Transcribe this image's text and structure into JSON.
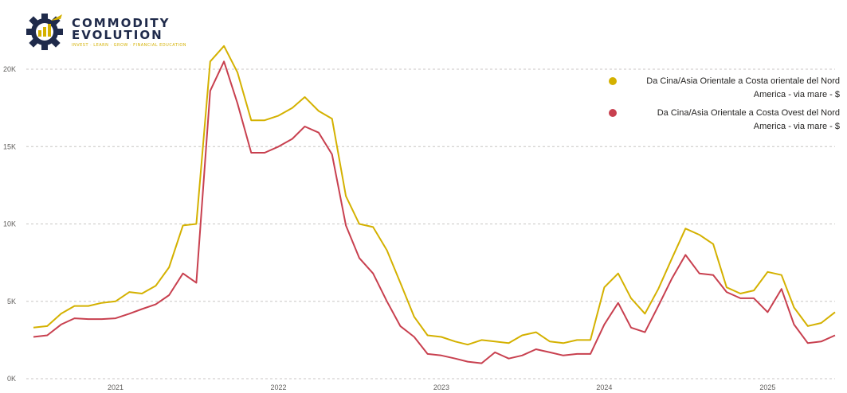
{
  "brand": {
    "line1": "COMMODITY",
    "line2": "EVOLUTION",
    "tagline": "INVEST · LEARN · GROW · FINANCIAL EDUCATION",
    "primary_color": "#1f2a4a",
    "accent_color": "#d4b100"
  },
  "chart_data": {
    "type": "line",
    "title": "",
    "xlabel": "",
    "ylabel": "",
    "ylim": [
      0,
      20000
    ],
    "y_ticks": [
      "0K",
      "5K",
      "10K",
      "15K",
      "20K"
    ],
    "x_ticks": [
      "2021",
      "2022",
      "2023",
      "2024",
      "2025"
    ],
    "grid": "horizontal dashed",
    "legend_position": "top-right",
    "x": [
      "2020-07",
      "2020-08",
      "2020-09",
      "2020-10",
      "2020-11",
      "2020-12",
      "2021-01",
      "2021-02",
      "2021-03",
      "2021-04",
      "2021-05",
      "2021-06",
      "2021-07",
      "2021-08",
      "2021-09",
      "2021-10",
      "2021-11",
      "2021-12",
      "2022-01",
      "2022-02",
      "2022-03",
      "2022-04",
      "2022-05",
      "2022-06",
      "2022-07",
      "2022-08",
      "2022-09",
      "2022-10",
      "2022-11",
      "2022-12",
      "2023-01",
      "2023-02",
      "2023-03",
      "2023-04",
      "2023-05",
      "2023-06",
      "2023-07",
      "2023-08",
      "2023-09",
      "2023-10",
      "2023-11",
      "2023-12",
      "2024-01",
      "2024-02",
      "2024-03",
      "2024-04",
      "2024-05",
      "2024-06",
      "2024-07",
      "2024-08",
      "2024-09",
      "2024-10",
      "2024-11",
      "2024-12",
      "2025-01",
      "2025-02",
      "2025-03",
      "2025-04",
      "2025-05",
      "2025-06"
    ],
    "series": [
      {
        "name": "Da Cina/Asia Orientale a Costa orientale del Nord America - via mare - $",
        "color": "#d4b100",
        "values": [
          3300,
          3400,
          4200,
          4700,
          4700,
          4900,
          5000,
          5600,
          5500,
          6000,
          7200,
          9900,
          10000,
          20500,
          21500,
          19800,
          16700,
          16700,
          17000,
          17500,
          18200,
          17300,
          16800,
          11800,
          10000,
          9800,
          8300,
          6200,
          4000,
          2800,
          2700,
          2400,
          2200,
          2500,
          2400,
          2300,
          2800,
          3000,
          2400,
          2300,
          2500,
          2500,
          5900,
          6800,
          5200,
          4200,
          5800,
          7800,
          9700,
          9300,
          8700,
          5900,
          5500,
          5700,
          6900,
          6700,
          4600,
          3400,
          3600,
          4300
        ]
      },
      {
        "name": "Da Cina/Asia Orientale a Costa Ovest del Nord America - via mare - $",
        "color": "#c8404f",
        "values": [
          2700,
          2800,
          3500,
          3900,
          3850,
          3850,
          3900,
          4200,
          4500,
          4800,
          5400,
          6800,
          6200,
          18600,
          20500,
          17800,
          14600,
          14600,
          15000,
          15500,
          16300,
          15900,
          14500,
          9900,
          7800,
          6800,
          5000,
          3400,
          2700,
          1600,
          1500,
          1300,
          1100,
          1000,
          1700,
          1300,
          1500,
          1900,
          1700,
          1500,
          1600,
          1600,
          3500,
          4900,
          3300,
          3000,
          4700,
          6500,
          8000,
          6800,
          6700,
          5600,
          5200,
          5200,
          4300,
          5800,
          3500,
          2300,
          2400,
          2800
        ]
      }
    ]
  }
}
